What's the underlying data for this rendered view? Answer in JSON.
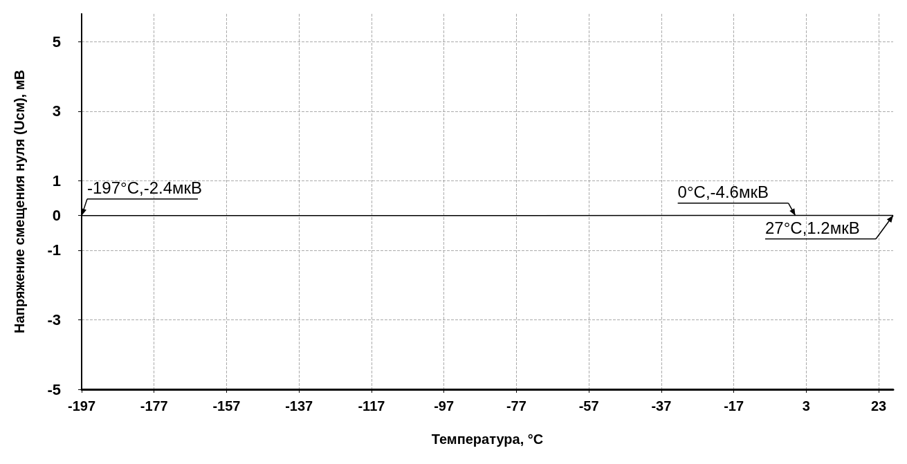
{
  "chart_data": {
    "type": "line",
    "xlabel": "Температура, °C",
    "ylabel": "Напряжение смещения нуля (Uсм), мВ",
    "x": [
      -197,
      27
    ],
    "values": [
      -0.0024,
      0.0012
    ],
    "color": "#000000",
    "marker": "none",
    "line_style": "solid",
    "xlim": [
      -197,
      27
    ],
    "xticks": [
      -197,
      -177,
      -157,
      -137,
      -117,
      -97,
      -77,
      -57,
      -37,
      -17,
      3,
      23
    ],
    "ylim": [
      -5,
      5.8
    ],
    "yticks": [
      -5,
      -3,
      -1,
      0,
      1,
      3,
      5
    ],
    "grid": true,
    "annotations": [
      {
        "text": "-197°C,-2.4мкВ",
        "x": -197,
        "y": -0.0024
      },
      {
        "text": "0°C,-4.6мкВ",
        "x": 0,
        "y": -0.0046
      },
      {
        "text": "27°C,1.2мкВ",
        "x": 27,
        "y": 0.0012
      }
    ]
  }
}
